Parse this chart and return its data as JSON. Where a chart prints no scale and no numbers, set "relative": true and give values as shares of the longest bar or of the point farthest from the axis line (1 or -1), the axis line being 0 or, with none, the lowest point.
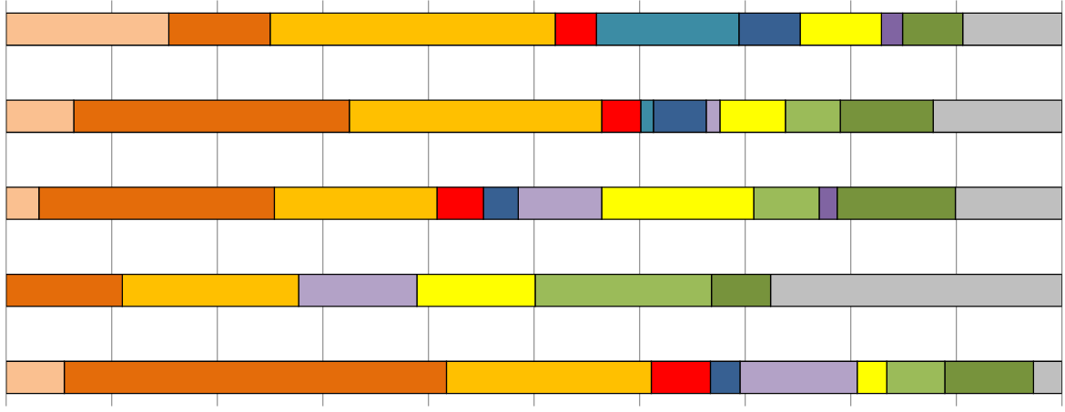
{
  "chart_data": {
    "type": "bar",
    "orientation": "horizontal",
    "stacked": true,
    "relative": true,
    "grid": "x",
    "categories": [
      null,
      null,
      null,
      null,
      null
    ],
    "series": [
      {
        "color": "#fac090",
        "values": [
          0.154,
          0.064,
          0.031,
          null,
          0.055
        ]
      },
      {
        "color": "#e46c0a",
        "values": [
          0.096,
          0.261,
          0.223,
          0.11,
          0.362
        ]
      },
      {
        "color": "#ffc000",
        "values": [
          0.27,
          0.239,
          0.154,
          0.167,
          0.194
        ]
      },
      {
        "color": "#ff0000",
        "values": [
          0.039,
          0.037,
          0.044,
          null,
          0.056
        ]
      },
      {
        "color": "#3c8ca4",
        "values": [
          0.135,
          0.012,
          null,
          null,
          null
        ]
      },
      {
        "color": "#376092",
        "values": [
          0.058,
          0.05,
          0.033,
          null,
          0.028
        ]
      },
      {
        "color": "#b3a2c7",
        "values": [
          null,
          0.013,
          0.079,
          0.112,
          0.111
        ]
      },
      {
        "color": "#ffff00",
        "values": [
          0.077,
          0.062,
          0.144,
          0.112,
          0.028
        ]
      },
      {
        "color": "#9bbb59",
        "values": [
          null,
          0.052,
          0.062,
          0.167,
          0.055
        ]
      },
      {
        "color": "#8064a2",
        "values": [
          0.02,
          null,
          0.017,
          null,
          null
        ]
      },
      {
        "color": "#77933c",
        "values": [
          0.057,
          0.088,
          0.112,
          0.056,
          0.084
        ]
      },
      {
        "color": "#bfbfbf",
        "values": [
          0.094,
          0.122,
          0.101,
          0.276,
          0.027
        ]
      }
    ]
  }
}
